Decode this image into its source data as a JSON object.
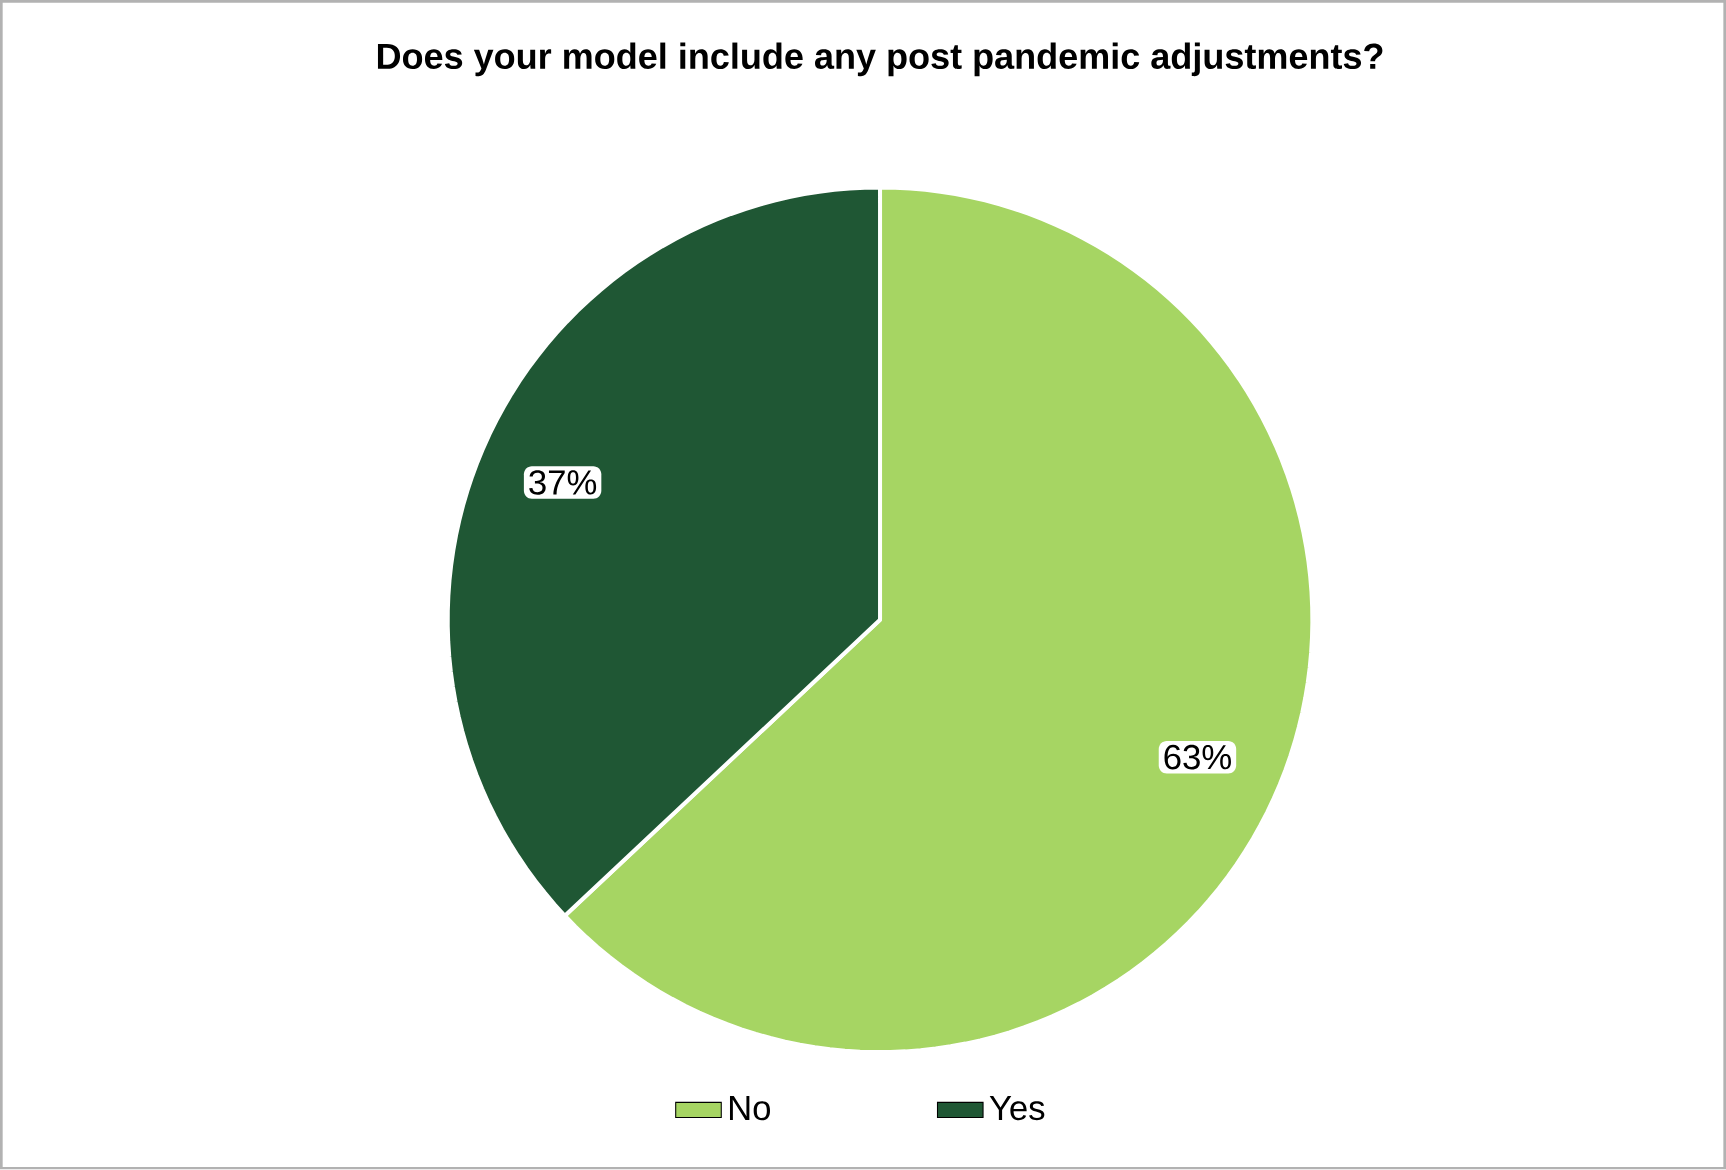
{
  "chart_data": {
    "type": "pie",
    "title": "Does your model include any post pandemic adjustments?",
    "categories": [
      "No",
      "Yes"
    ],
    "values": [
      63,
      37
    ],
    "value_labels": [
      "63%",
      "37%"
    ],
    "colors": [
      "#a6d563",
      "#1f5734"
    ],
    "legend": "bottom"
  }
}
